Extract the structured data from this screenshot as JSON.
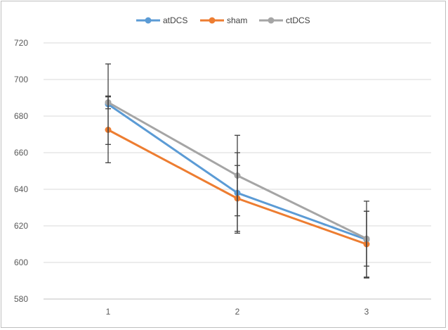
{
  "chart_data": {
    "type": "line",
    "title": "",
    "xlabel": "",
    "ylabel": "",
    "categories": [
      "1",
      "2",
      "3"
    ],
    "ylim": [
      580,
      720
    ],
    "yticks": [
      580,
      600,
      620,
      640,
      660,
      680,
      700,
      720
    ],
    "grid": true,
    "legend_position": "top",
    "series": [
      {
        "name": "atDCS",
        "color": "#5b9bd5",
        "values": [
          686.5,
          638,
          612.5
        ],
        "errors": [
          22,
          22,
          21
        ]
      },
      {
        "name": "sham",
        "color": "#ed7d31",
        "values": [
          672.5,
          635,
          610
        ],
        "errors": [
          18,
          18,
          18
        ]
      },
      {
        "name": "ctDCS",
        "color": "#a5a5a5",
        "values": [
          687.5,
          647.5,
          613
        ],
        "errors": [
          3.5,
          22,
          15
        ]
      }
    ],
    "error_bar_color": "#404040"
  }
}
